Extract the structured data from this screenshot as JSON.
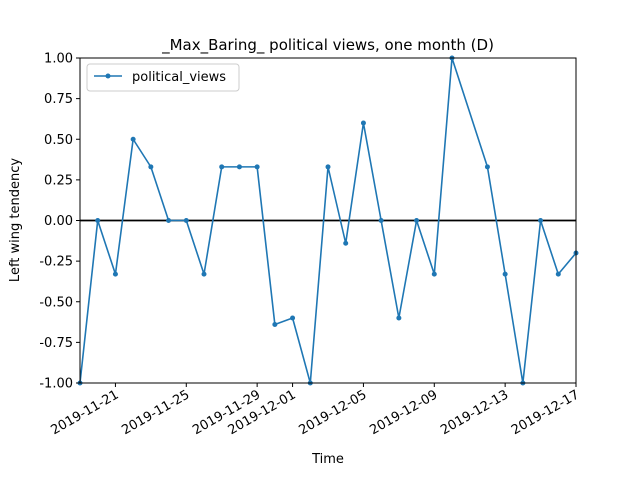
{
  "chart_data": {
    "type": "line",
    "title": "_Max_Baring_ political views, one month (D)",
    "xlabel": "Time",
    "ylabel": "Left wing tendency",
    "xlim": [
      "2019-11-19",
      "2019-12-17"
    ],
    "ylim": [
      -1.0,
      1.0
    ],
    "x_ticks": [
      "2019-11-21",
      "2019-11-25",
      "2019-11-29",
      "2019-12-01",
      "2019-12-05",
      "2019-12-09",
      "2019-12-13",
      "2019-12-17"
    ],
    "y_ticks": [
      "-1.00",
      "-0.75",
      "-0.50",
      "-0.25",
      "0.00",
      "0.25",
      "0.50",
      "0.75",
      "1.00"
    ],
    "grid": false,
    "legend_position": "upper-left",
    "zero_line": true,
    "series": [
      {
        "name": "political_views",
        "color": "#1f77b4",
        "marker": "dot",
        "x": [
          "2019-11-19",
          "2019-11-20",
          "2019-11-21",
          "2019-11-22",
          "2019-11-23",
          "2019-11-24",
          "2019-11-25",
          "2019-11-26",
          "2019-11-27",
          "2019-11-28",
          "2019-11-29",
          "2019-11-30",
          "2019-12-01",
          "2019-12-02",
          "2019-12-03",
          "2019-12-04",
          "2019-12-05",
          "2019-12-06",
          "2019-12-07",
          "2019-12-08",
          "2019-12-09",
          "2019-12-10",
          "2019-12-12",
          "2019-12-13",
          "2019-12-14",
          "2019-12-15",
          "2019-12-16",
          "2019-12-17"
        ],
        "y": [
          -1.0,
          0.0,
          -0.33,
          0.5,
          0.33,
          0.0,
          0.0,
          -0.33,
          0.33,
          0.33,
          0.33,
          -0.64,
          -0.6,
          -1.0,
          0.33,
          -0.14,
          0.6,
          0.0,
          -0.6,
          0.0,
          -0.33,
          1.0,
          0.33,
          -0.33,
          -1.0,
          0.0,
          -0.33,
          -0.2
        ]
      }
    ]
  }
}
